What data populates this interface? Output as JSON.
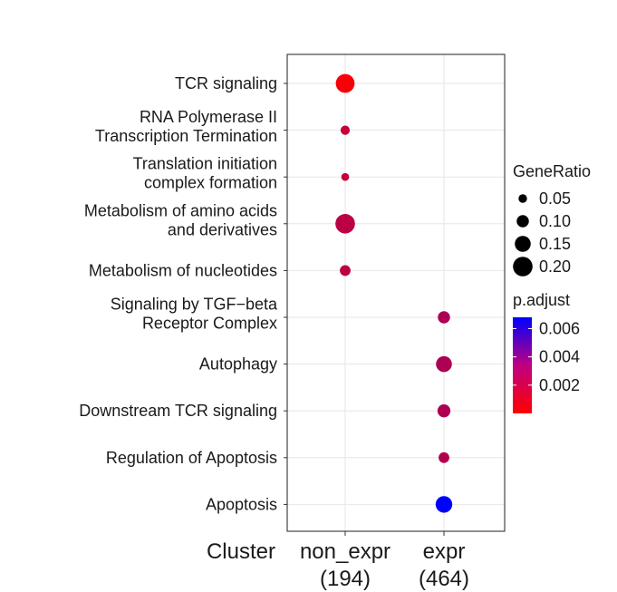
{
  "chart_data": {
    "type": "scatter",
    "subtype": "dotplot",
    "title": "",
    "xlabel": "Cluster",
    "ylabel": "",
    "x_categories": [
      {
        "line1": "non_expr",
        "line2": "(194)"
      },
      {
        "line1": "expr",
        "line2": "(464)"
      }
    ],
    "y_categories": [
      {
        "lines": [
          "TCR signaling"
        ]
      },
      {
        "lines": [
          "RNA Polymerase II",
          "Transcription Termination"
        ]
      },
      {
        "lines": [
          "Translation initiation",
          "complex formation"
        ]
      },
      {
        "lines": [
          "Metabolism of amino acids",
          "and derivatives"
        ]
      },
      {
        "lines": [
          "Metabolism of nucleotides"
        ]
      },
      {
        "lines": [
          "Signaling by TGF−beta",
          "Receptor Complex"
        ]
      },
      {
        "lines": [
          "Autophagy"
        ]
      },
      {
        "lines": [
          "Downstream TCR signaling"
        ]
      },
      {
        "lines": [
          "Regulation of Apoptosis"
        ]
      },
      {
        "lines": [
          "Apoptosis"
        ]
      }
    ],
    "points": [
      {
        "x": 0,
        "y": 0,
        "gene_ratio": 0.19,
        "p_adjust": 0.0002
      },
      {
        "x": 0,
        "y": 1,
        "gene_ratio": 0.06,
        "p_adjust": 0.0015
      },
      {
        "x": 0,
        "y": 2,
        "gene_ratio": 0.04,
        "p_adjust": 0.0015
      },
      {
        "x": 0,
        "y": 3,
        "gene_ratio": 0.2,
        "p_adjust": 0.0018
      },
      {
        "x": 0,
        "y": 4,
        "gene_ratio": 0.08,
        "p_adjust": 0.0018
      },
      {
        "x": 1,
        "y": 5,
        "gene_ratio": 0.1,
        "p_adjust": 0.0022
      },
      {
        "x": 1,
        "y": 6,
        "gene_ratio": 0.15,
        "p_adjust": 0.0022
      },
      {
        "x": 1,
        "y": 7,
        "gene_ratio": 0.11,
        "p_adjust": 0.0022
      },
      {
        "x": 1,
        "y": 8,
        "gene_ratio": 0.08,
        "p_adjust": 0.002
      },
      {
        "x": 1,
        "y": 9,
        "gene_ratio": 0.16,
        "p_adjust": 0.0068
      }
    ],
    "size_legend": {
      "title": "GeneRatio",
      "labels": [
        "0.05",
        "0.10",
        "0.15",
        "0.20"
      ],
      "values": [
        0.05,
        0.1,
        0.15,
        0.2
      ]
    },
    "color_legend": {
      "title": "p.adjust",
      "labels": [
        "0.006",
        "0.004",
        "0.002"
      ],
      "values": [
        0.006,
        0.004,
        0.002
      ],
      "range": [
        0.0,
        0.0068
      ],
      "low_color": "#ff0000",
      "high_color": "#0000ff"
    },
    "grid": true,
    "legend_position": "right"
  }
}
